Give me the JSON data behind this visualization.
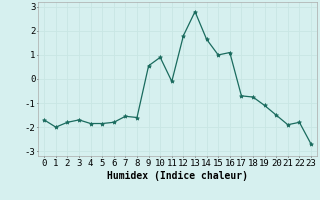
{
  "x": [
    0,
    1,
    2,
    3,
    4,
    5,
    6,
    7,
    8,
    9,
    10,
    11,
    12,
    13,
    14,
    15,
    16,
    17,
    18,
    19,
    20,
    21,
    22,
    23
  ],
  "y": [
    -1.7,
    -2.0,
    -1.8,
    -1.7,
    -1.85,
    -1.85,
    -1.8,
    -1.55,
    -1.6,
    0.55,
    0.9,
    -0.1,
    1.8,
    2.8,
    1.65,
    1.0,
    1.1,
    -0.7,
    -0.75,
    -1.1,
    -1.5,
    -1.9,
    -1.8,
    -2.7
  ],
  "line_color": "#1a6b5e",
  "marker": "*",
  "marker_size": 3,
  "bg_color": "#d6f0ef",
  "grid_color": "#c8e6e4",
  "xlabel": "Humidex (Indice chaleur)",
  "xlabel_fontsize": 7,
  "tick_fontsize": 6.5,
  "ylim": [
    -3.2,
    3.2
  ],
  "xlim": [
    -0.5,
    23.5
  ],
  "yticks": [
    -3,
    -2,
    -1,
    0,
    1,
    2,
    3
  ],
  "xticks": [
    0,
    1,
    2,
    3,
    4,
    5,
    6,
    7,
    8,
    9,
    10,
    11,
    12,
    13,
    14,
    15,
    16,
    17,
    18,
    19,
    20,
    21,
    22,
    23
  ]
}
